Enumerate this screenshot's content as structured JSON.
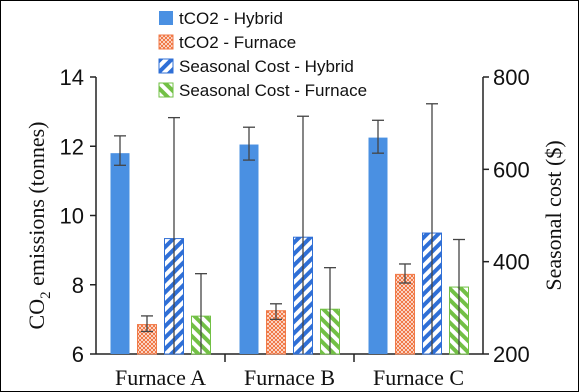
{
  "chart_data": {
    "type": "bar",
    "categories": [
      "Furnace A",
      "Furnace B",
      "Furnace C"
    ],
    "series": [
      {
        "name": "tCO2 - Hybrid",
        "axis": "left",
        "pattern": "solid",
        "color": "#4a90e2",
        "values": [
          11.8,
          12.05,
          12.25
        ],
        "err_low": [
          11.45,
          11.6,
          11.8
        ],
        "err_high": [
          12.3,
          12.55,
          12.75
        ]
      },
      {
        "name": "tCO2 - Furnace",
        "axis": "left",
        "pattern": "checker",
        "color": "#f28c5e",
        "values": [
          6.85,
          7.25,
          8.3
        ],
        "err_low": [
          6.65,
          7.0,
          8.05
        ],
        "err_high": [
          7.1,
          7.45,
          8.6
        ]
      },
      {
        "name": "Seasonal Cost - Hybrid",
        "axis": "right",
        "pattern": "diag-blue",
        "color": "#2f6fd6",
        "values": [
          450,
          453,
          462
        ],
        "err_low": [
          200,
          200,
          200
        ],
        "err_high": [
          712,
          715,
          742
        ]
      },
      {
        "name": "Seasonal Cost - Furnace",
        "axis": "right",
        "pattern": "diag-green",
        "color": "#72c045",
        "values": [
          282,
          297,
          345
        ],
        "err_low": [
          200,
          200,
          200
        ],
        "err_high": [
          374,
          387,
          448
        ]
      }
    ],
    "y_left": {
      "label_main": "CO",
      "label_sub": "2",
      "label_rest": " emissions (tonnes)",
      "ylim": [
        6,
        14
      ],
      "ticks": [
        "6",
        "8",
        "10",
        "12",
        "14"
      ]
    },
    "y_right": {
      "label": "Seasonal cost ($)",
      "ylim": [
        200,
        800
      ],
      "ticks": [
        "200",
        "400",
        "600",
        "800"
      ]
    },
    "legend": {
      "position": "top-center"
    },
    "grid": false
  }
}
